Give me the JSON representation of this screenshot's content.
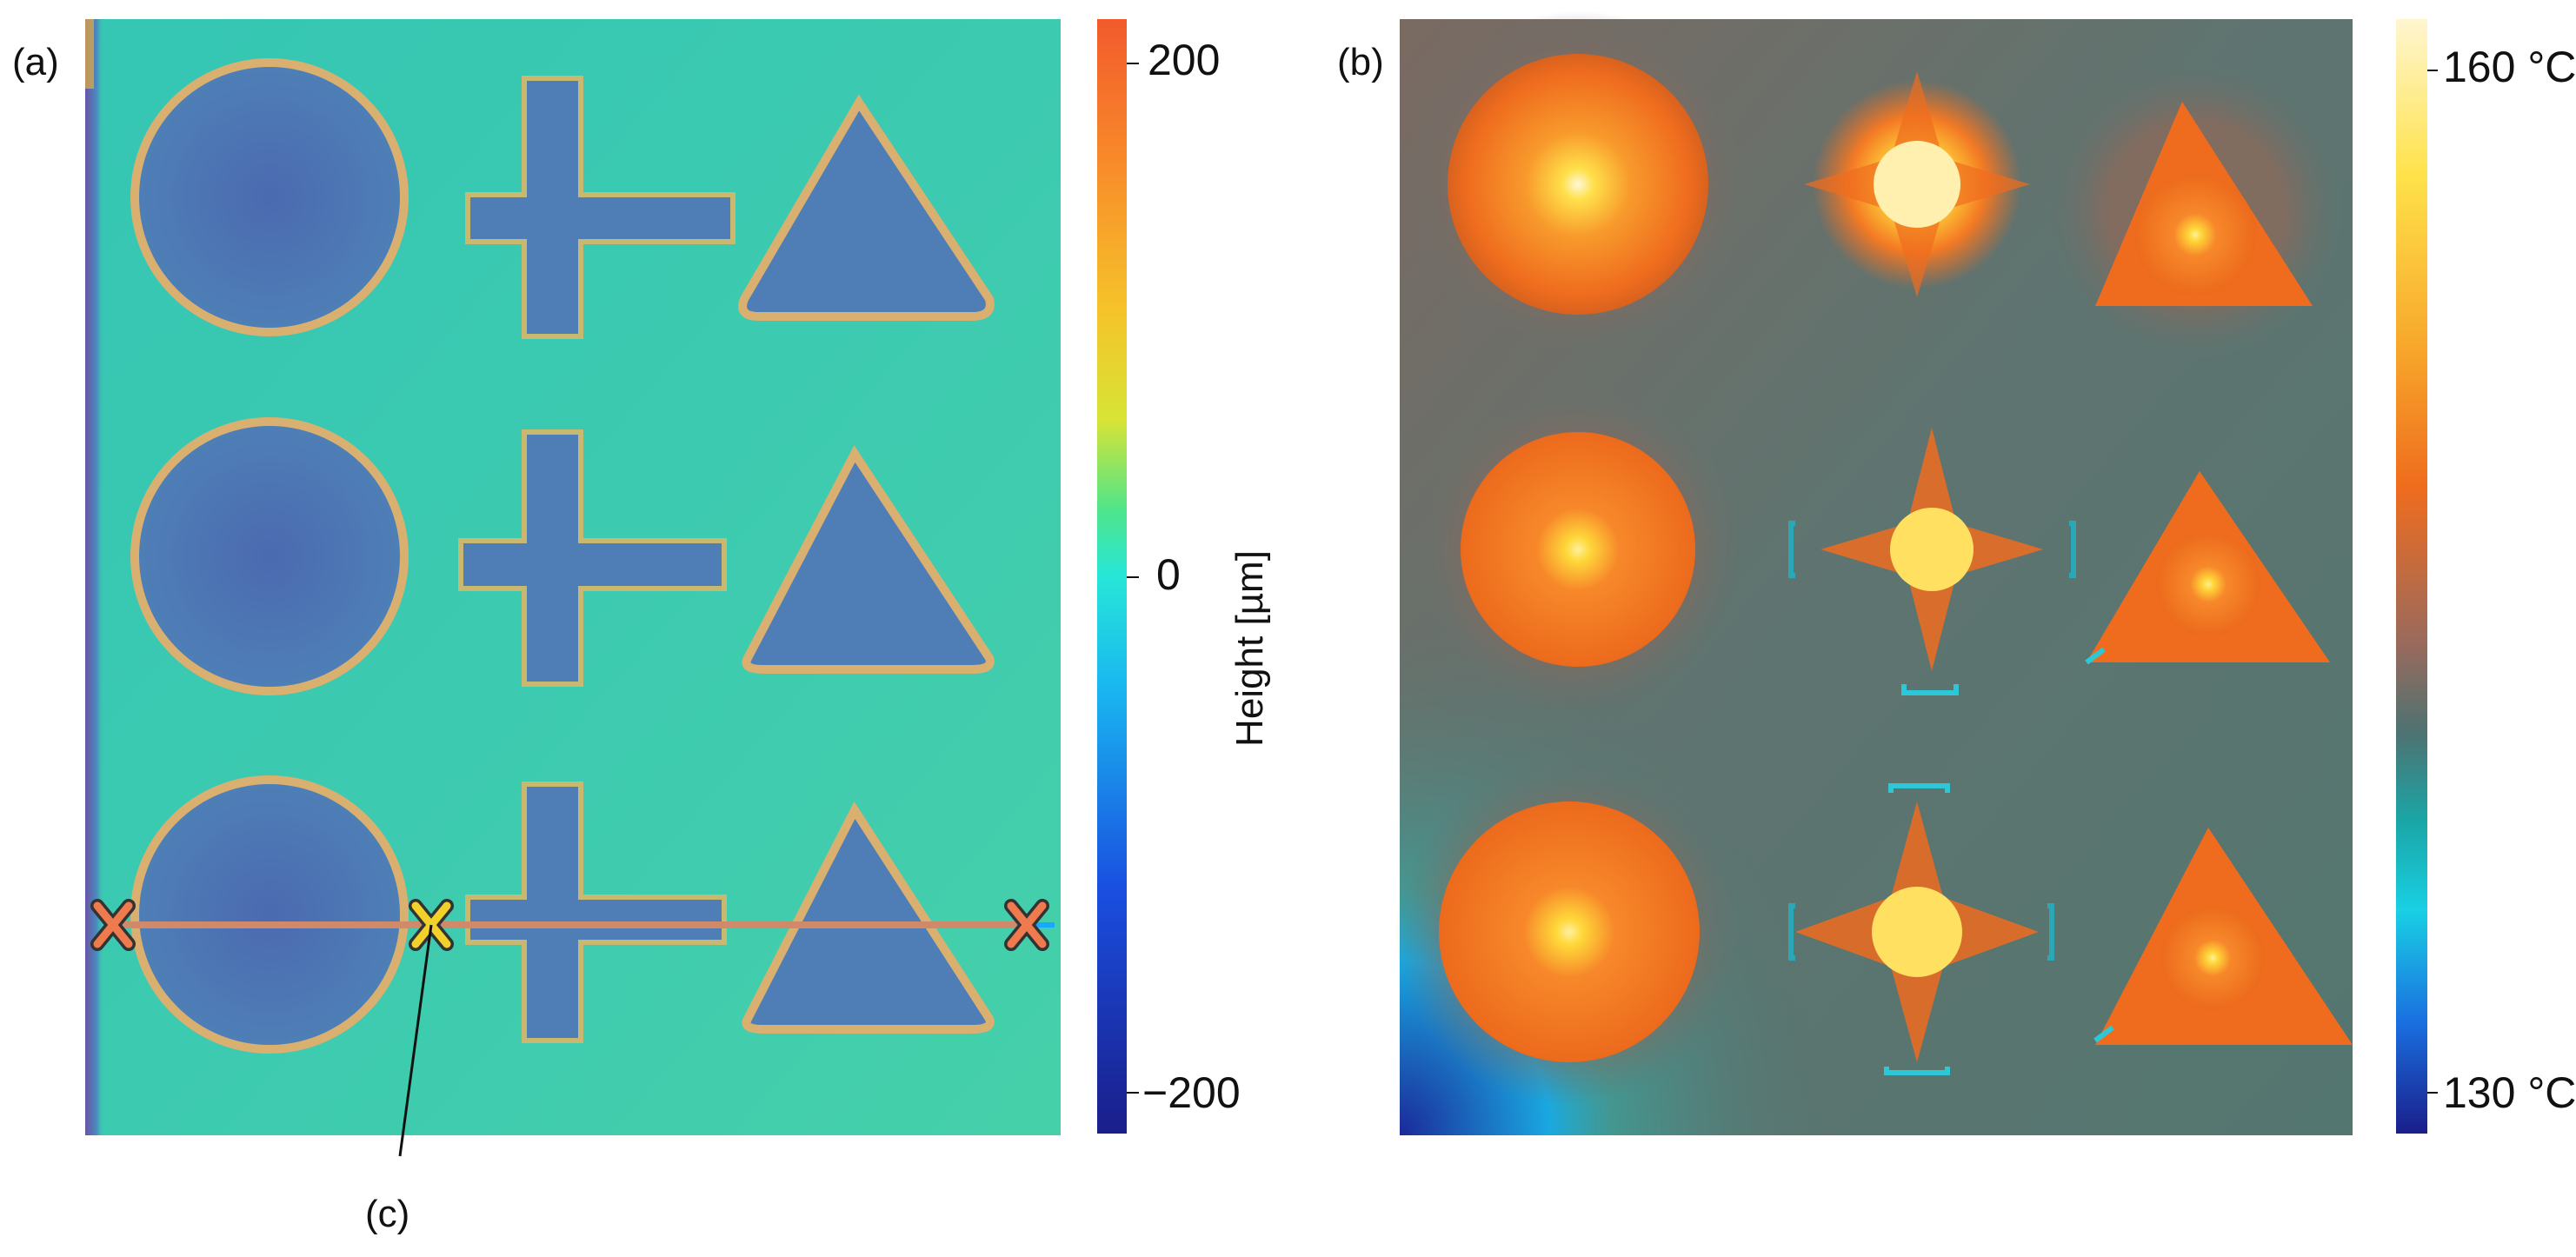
{
  "panel_a": {
    "label": "(a)",
    "colorbar": {
      "title": "Height [µm]",
      "ticks": [
        "200",
        "0",
        "−200"
      ],
      "range": [
        -200,
        200
      ],
      "colormap": [
        "#1a1e8a",
        "#1a4fe0",
        "#19b7f0",
        "#27e6d8",
        "#4fe58a",
        "#d7e436",
        "#f6c32a",
        "#f8872a",
        "#f25a2c"
      ]
    },
    "callout_label": "(c)",
    "shapes": [
      "circle",
      "cross",
      "triangle"
    ],
    "rows": 3
  },
  "panel_b": {
    "label": "(b)",
    "colorbar": {
      "ticks": [
        "160 °C",
        "130 °C"
      ],
      "range": [
        130,
        160
      ],
      "colormap": [
        "#fff6d0",
        "#ffe24a",
        "#f7a52a",
        "#ef6c1e",
        "#9a6a5c",
        "#4e7272",
        "#1aa6a6",
        "#19d0e4",
        "#1a6fe0",
        "#1a1e8a"
      ]
    },
    "shapes": [
      "circle",
      "cross",
      "triangle"
    ],
    "rows": 3
  }
}
